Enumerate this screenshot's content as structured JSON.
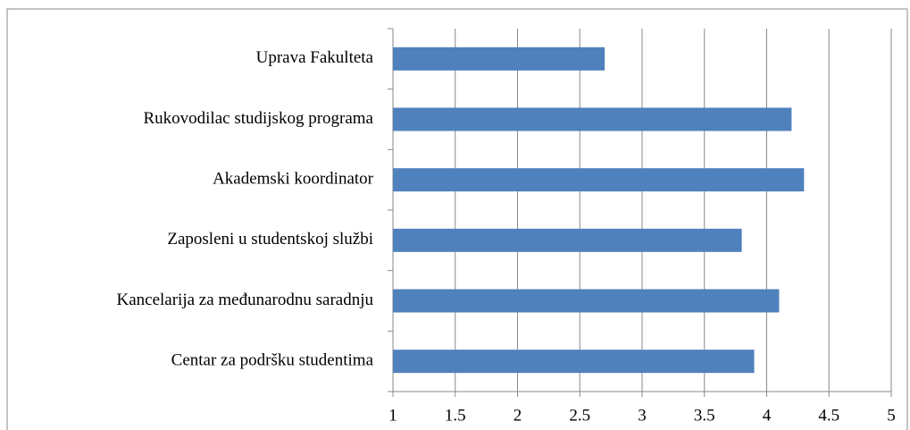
{
  "chart_data": {
    "type": "barh",
    "categories": [
      "Uprava Fakulteta",
      "Rukovodilac studijskog programa",
      "Akademski koordinator",
      "Zaposleni u studentskoj službi",
      "Kancelarija za međunarodnu saradnju",
      "Centar za podršku studentima"
    ],
    "values": [
      2.7,
      4.2,
      4.3,
      3.8,
      4.1,
      3.9
    ],
    "color": "#4f81bd",
    "xlim": [
      1,
      5
    ],
    "xticks": [
      1,
      1.5,
      2,
      2.5,
      3,
      3.5,
      4,
      4.5,
      5
    ],
    "grid": true
  }
}
